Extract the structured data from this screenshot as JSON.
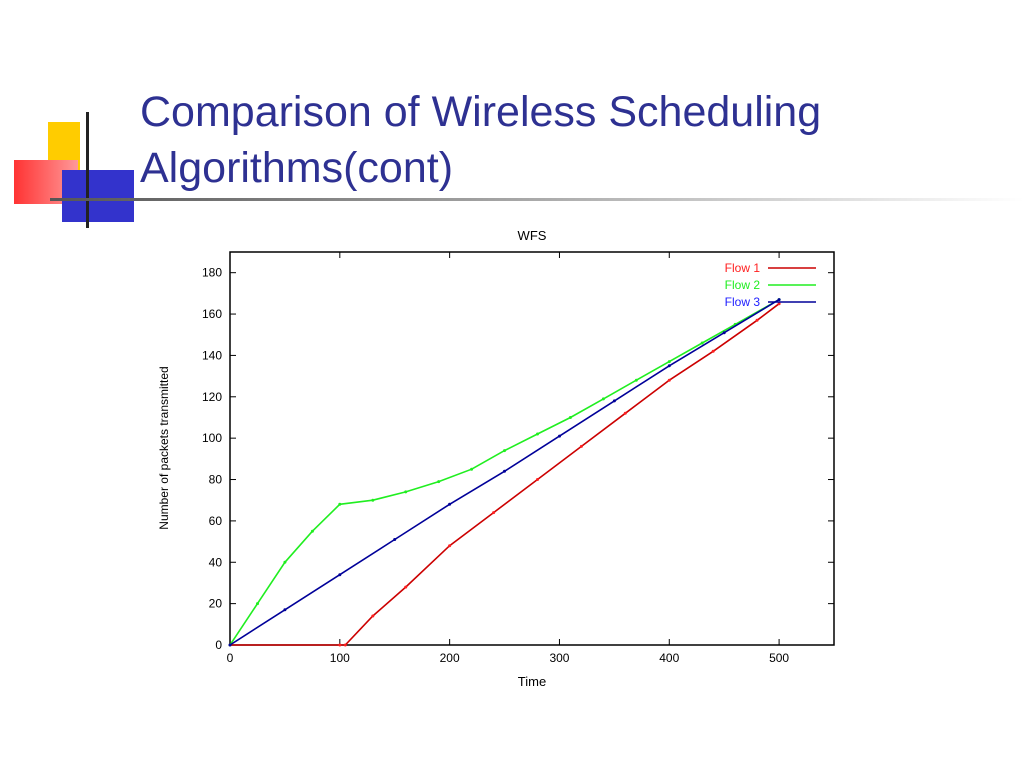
{
  "slide": {
    "title_line1": "Comparison of Wireless Scheduling",
    "title_line2": "Algorithms(cont)"
  },
  "colors": {
    "title": "#2e3192",
    "flow1": "#ff2020",
    "flow2": "#20ee20",
    "flow3": "#2020ff",
    "flow1_line": "#cc0000",
    "flow3_line": "#000099",
    "deco_yellow": "#ffcc00",
    "deco_red": "#ff3333",
    "deco_blue": "#3333cc"
  },
  "chart_data": {
    "type": "line",
    "title": "WFS",
    "xlabel": "Time",
    "ylabel": "Number of packets transmitted",
    "xlim": [
      0,
      550
    ],
    "ylim": [
      0,
      190
    ],
    "xticks": [
      0,
      100,
      200,
      300,
      400,
      500
    ],
    "yticks": [
      0,
      20,
      40,
      60,
      80,
      100,
      120,
      140,
      160,
      180
    ],
    "grid": false,
    "legend_position": "top-right",
    "series": [
      {
        "name": "Flow 1",
        "x": [
          0,
          100,
          105,
          130,
          160,
          200,
          240,
          280,
          320,
          360,
          400,
          440,
          480,
          500
        ],
        "y": [
          0,
          0,
          0,
          14,
          28,
          48,
          64,
          80,
          96,
          112,
          128,
          142,
          157,
          165
        ]
      },
      {
        "name": "Flow 2",
        "x": [
          0,
          25,
          50,
          75,
          100,
          130,
          160,
          190,
          220,
          250,
          280,
          310,
          340,
          370,
          400,
          430,
          460,
          500
        ],
        "y": [
          0,
          20,
          40,
          55,
          68,
          70,
          74,
          79,
          85,
          94,
          102,
          110,
          119,
          128,
          137,
          146,
          155,
          167
        ]
      },
      {
        "name": "Flow 3",
        "x": [
          0,
          50,
          100,
          150,
          200,
          250,
          300,
          350,
          400,
          450,
          500
        ],
        "y": [
          0,
          17,
          34,
          51,
          68,
          84,
          101,
          118,
          135,
          151,
          167
        ]
      }
    ]
  }
}
